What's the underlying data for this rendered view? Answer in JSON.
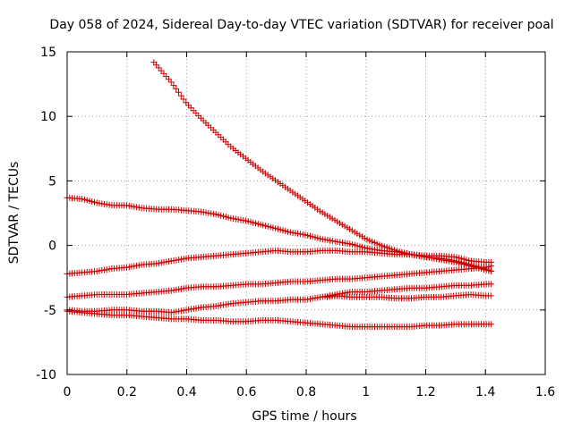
{
  "chart_data": {
    "type": "scatter",
    "title": "Day 058 of 2024, Sidereal Day-to-day VTEC variation (SDTVAR) for receiver poal",
    "xlabel": "GPS time / hours",
    "ylabel": "SDTVAR / TECUs",
    "xlim": [
      0,
      1.6
    ],
    "ylim": [
      -10,
      15
    ],
    "x_ticks": [
      0,
      0.2,
      0.4,
      0.6,
      0.8,
      1,
      1.2,
      1.4,
      1.6
    ],
    "x_tick_labels": [
      "0",
      "0.2",
      "0.4",
      "0.6",
      "0.8",
      "1",
      "1.2",
      "1.4",
      "1.6"
    ],
    "y_ticks": [
      -10,
      -5,
      0,
      5,
      10,
      15
    ],
    "y_tick_labels": [
      "-10",
      "-5",
      "0",
      "5",
      "10",
      "15"
    ],
    "grid": true,
    "marker": "+",
    "color": "#cc0000",
    "x_step": 0.0083,
    "series": [
      {
        "name": "series-1",
        "x_start": 0.29,
        "x_end": 1.42,
        "knots": [
          [
            0.29,
            14.2
          ],
          [
            0.35,
            12.6
          ],
          [
            0.4,
            11.0
          ],
          [
            0.45,
            9.8
          ],
          [
            0.5,
            8.7
          ],
          [
            0.55,
            7.6
          ],
          [
            0.6,
            6.7
          ],
          [
            0.65,
            5.8
          ],
          [
            0.7,
            5.0
          ],
          [
            0.75,
            4.2
          ],
          [
            0.8,
            3.4
          ],
          [
            0.85,
            2.6
          ],
          [
            0.9,
            1.9
          ],
          [
            0.95,
            1.2
          ],
          [
            1.0,
            0.5
          ],
          [
            1.05,
            0.0
          ],
          [
            1.1,
            -0.4
          ],
          [
            1.15,
            -0.7
          ],
          [
            1.2,
            -0.9
          ],
          [
            1.25,
            -1.0
          ],
          [
            1.3,
            -1.2
          ],
          [
            1.35,
            -1.5
          ],
          [
            1.4,
            -1.8
          ],
          [
            1.42,
            -2.0
          ]
        ]
      },
      {
        "name": "series-2",
        "x_start": 0.0,
        "x_end": 1.42,
        "knots": [
          [
            0.0,
            3.7
          ],
          [
            0.05,
            3.6
          ],
          [
            0.1,
            3.3
          ],
          [
            0.15,
            3.1
          ],
          [
            0.2,
            3.1
          ],
          [
            0.25,
            2.9
          ],
          [
            0.3,
            2.8
          ],
          [
            0.35,
            2.8
          ],
          [
            0.4,
            2.7
          ],
          [
            0.45,
            2.6
          ],
          [
            0.5,
            2.4
          ],
          [
            0.55,
            2.1
          ],
          [
            0.6,
            1.9
          ],
          [
            0.65,
            1.6
          ],
          [
            0.7,
            1.3
          ],
          [
            0.75,
            1.0
          ],
          [
            0.8,
            0.8
          ],
          [
            0.85,
            0.5
          ],
          [
            0.9,
            0.3
          ],
          [
            0.95,
            0.1
          ],
          [
            1.0,
            -0.2
          ],
          [
            1.05,
            -0.4
          ],
          [
            1.1,
            -0.5
          ],
          [
            1.15,
            -0.7
          ],
          [
            1.2,
            -0.9
          ],
          [
            1.25,
            -1.1
          ],
          [
            1.3,
            -1.3
          ],
          [
            1.35,
            -1.6
          ],
          [
            1.4,
            -1.9
          ],
          [
            1.42,
            -2.0
          ]
        ]
      },
      {
        "name": "series-3",
        "x_start": 0.0,
        "x_end": 1.42,
        "knots": [
          [
            0.0,
            -2.2
          ],
          [
            0.05,
            -2.1
          ],
          [
            0.1,
            -2.0
          ],
          [
            0.15,
            -1.8
          ],
          [
            0.2,
            -1.7
          ],
          [
            0.25,
            -1.5
          ],
          [
            0.3,
            -1.4
          ],
          [
            0.35,
            -1.2
          ],
          [
            0.4,
            -1.0
          ],
          [
            0.45,
            -0.9
          ],
          [
            0.5,
            -0.8
          ],
          [
            0.55,
            -0.7
          ],
          [
            0.6,
            -0.6
          ],
          [
            0.65,
            -0.5
          ],
          [
            0.7,
            -0.4
          ],
          [
            0.75,
            -0.5
          ],
          [
            0.8,
            -0.5
          ],
          [
            0.85,
            -0.4
          ],
          [
            0.9,
            -0.4
          ],
          [
            0.95,
            -0.5
          ],
          [
            1.0,
            -0.5
          ],
          [
            1.05,
            -0.6
          ],
          [
            1.1,
            -0.7
          ],
          [
            1.15,
            -0.7
          ],
          [
            1.2,
            -0.8
          ],
          [
            1.25,
            -0.8
          ],
          [
            1.3,
            -0.9
          ],
          [
            1.35,
            -1.2
          ],
          [
            1.4,
            -1.3
          ],
          [
            1.42,
            -1.3
          ]
        ]
      },
      {
        "name": "series-4",
        "x_start": 0.0,
        "x_end": 1.42,
        "knots": [
          [
            0.0,
            -4.0
          ],
          [
            0.05,
            -3.9
          ],
          [
            0.1,
            -3.8
          ],
          [
            0.15,
            -3.8
          ],
          [
            0.2,
            -3.8
          ],
          [
            0.25,
            -3.7
          ],
          [
            0.3,
            -3.6
          ],
          [
            0.35,
            -3.5
          ],
          [
            0.4,
            -3.3
          ],
          [
            0.45,
            -3.2
          ],
          [
            0.5,
            -3.2
          ],
          [
            0.55,
            -3.1
          ],
          [
            0.6,
            -3.0
          ],
          [
            0.65,
            -3.0
          ],
          [
            0.7,
            -2.9
          ],
          [
            0.75,
            -2.8
          ],
          [
            0.8,
            -2.8
          ],
          [
            0.85,
            -2.7
          ],
          [
            0.9,
            -2.6
          ],
          [
            0.95,
            -2.6
          ],
          [
            1.0,
            -2.5
          ],
          [
            1.05,
            -2.4
          ],
          [
            1.1,
            -2.3
          ],
          [
            1.15,
            -2.2
          ],
          [
            1.2,
            -2.1
          ],
          [
            1.25,
            -2.0
          ],
          [
            1.3,
            -1.9
          ],
          [
            1.35,
            -1.8
          ],
          [
            1.4,
            -1.7
          ],
          [
            1.42,
            -1.6
          ]
        ]
      },
      {
        "name": "series-5",
        "x_start": 0.0,
        "x_end": 1.42,
        "knots": [
          [
            0.0,
            -5.0
          ],
          [
            0.05,
            -5.1
          ],
          [
            0.1,
            -5.1
          ],
          [
            0.15,
            -5.0
          ],
          [
            0.2,
            -5.0
          ],
          [
            0.25,
            -5.1
          ],
          [
            0.3,
            -5.1
          ],
          [
            0.35,
            -5.2
          ],
          [
            0.4,
            -5.0
          ],
          [
            0.45,
            -4.8
          ],
          [
            0.5,
            -4.7
          ],
          [
            0.55,
            -4.5
          ],
          [
            0.6,
            -4.4
          ],
          [
            0.65,
            -4.3
          ],
          [
            0.7,
            -4.3
          ],
          [
            0.75,
            -4.2
          ],
          [
            0.8,
            -4.2
          ],
          [
            0.85,
            -4.0
          ],
          [
            0.9,
            -3.8
          ],
          [
            0.95,
            -3.6
          ],
          [
            1.0,
            -3.6
          ],
          [
            1.05,
            -3.5
          ],
          [
            1.1,
            -3.4
          ],
          [
            1.15,
            -3.3
          ],
          [
            1.2,
            -3.3
          ],
          [
            1.25,
            -3.2
          ],
          [
            1.3,
            -3.1
          ],
          [
            1.35,
            -3.1
          ],
          [
            1.4,
            -3.0
          ],
          [
            1.42,
            -3.0
          ]
        ]
      },
      {
        "name": "series-6",
        "x_start": 0.0,
        "x_end": 1.42,
        "knots": [
          [
            0.0,
            -5.1
          ],
          [
            0.05,
            -5.2
          ],
          [
            0.1,
            -5.3
          ],
          [
            0.15,
            -5.4
          ],
          [
            0.2,
            -5.4
          ],
          [
            0.25,
            -5.5
          ],
          [
            0.3,
            -5.6
          ],
          [
            0.35,
            -5.7
          ],
          [
            0.4,
            -5.7
          ],
          [
            0.45,
            -5.8
          ],
          [
            0.5,
            -5.8
          ],
          [
            0.55,
            -5.9
          ],
          [
            0.6,
            -5.9
          ],
          [
            0.65,
            -5.8
          ],
          [
            0.7,
            -5.8
          ],
          [
            0.75,
            -5.9
          ],
          [
            0.8,
            -6.0
          ],
          [
            0.85,
            -6.1
          ],
          [
            0.9,
            -6.2
          ],
          [
            0.95,
            -6.3
          ],
          [
            1.0,
            -6.3
          ],
          [
            1.05,
            -6.3
          ],
          [
            1.1,
            -6.3
          ],
          [
            1.15,
            -6.3
          ],
          [
            1.2,
            -6.2
          ],
          [
            1.25,
            -6.2
          ],
          [
            1.3,
            -6.1
          ],
          [
            1.35,
            -6.1
          ],
          [
            1.4,
            -6.1
          ],
          [
            1.42,
            -6.1
          ]
        ]
      },
      {
        "name": "series-7",
        "x_start": 0.87,
        "x_end": 1.42,
        "knots": [
          [
            0.87,
            -4.0
          ],
          [
            0.9,
            -3.9
          ],
          [
            0.95,
            -4.0
          ],
          [
            1.0,
            -4.0
          ],
          [
            1.05,
            -4.0
          ],
          [
            1.1,
            -4.1
          ],
          [
            1.15,
            -4.1
          ],
          [
            1.2,
            -4.0
          ],
          [
            1.25,
            -4.0
          ],
          [
            1.3,
            -3.9
          ],
          [
            1.35,
            -3.8
          ],
          [
            1.4,
            -3.9
          ],
          [
            1.42,
            -3.9
          ]
        ]
      }
    ]
  }
}
